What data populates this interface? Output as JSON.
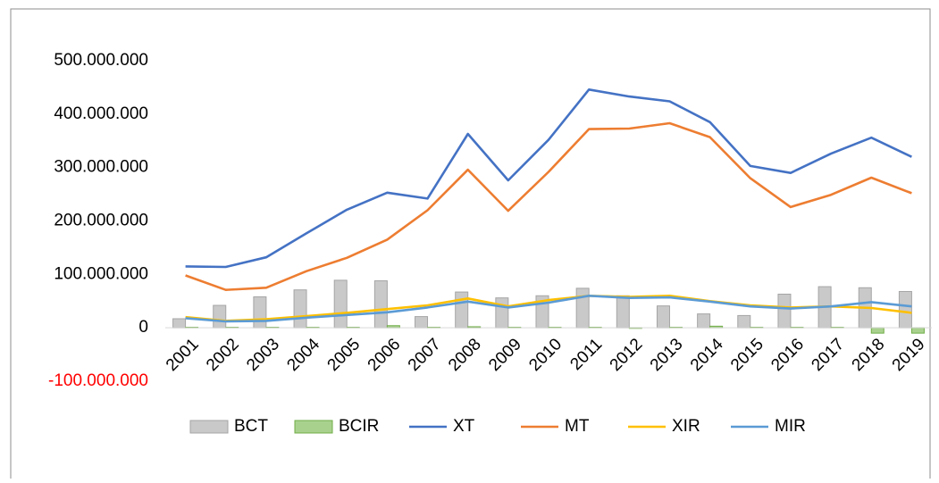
{
  "chart_data": {
    "type": "combo",
    "categories": [
      "2001",
      "2002",
      "2003",
      "2004",
      "2005",
      "2006",
      "2007",
      "2008",
      "2009",
      "2010",
      "2011",
      "2012",
      "2013",
      "2014",
      "2015",
      "2016",
      "2017",
      "2018",
      "2019"
    ],
    "series": [
      {
        "name": "BCT",
        "type": "bar",
        "color": "#c9c9c9",
        "stroke": "#a5a5a5",
        "values": [
          17000000,
          42000000,
          58000000,
          71000000,
          89000000,
          88000000,
          21000000,
          67000000,
          56000000,
          60000000,
          74000000,
          60000000,
          41000000,
          26000000,
          23000000,
          63000000,
          77000000,
          75000000,
          68000000
        ]
      },
      {
        "name": "BCIR",
        "type": "bar",
        "color": "#a9d18e",
        "stroke": "#70ad47",
        "values": [
          1000000,
          1000000,
          1000000,
          1000000,
          1000000,
          4000000,
          1000000,
          2000000,
          1000000,
          1000000,
          1000000,
          -1000000,
          1000000,
          3000000,
          1000000,
          1000000,
          1000000,
          -10000000,
          -10000000
        ]
      },
      {
        "name": "XT",
        "type": "line",
        "color": "#4472c4",
        "values": [
          115000000,
          114000000,
          132000000,
          177000000,
          221000000,
          253000000,
          242000000,
          363000000,
          276000000,
          352000000,
          446000000,
          433000000,
          424000000,
          385000000,
          303000000,
          290000000,
          326000000,
          356000000,
          320000000
        ]
      },
      {
        "name": "MT",
        "type": "line",
        "color": "#ed7d31",
        "values": [
          98000000,
          71000000,
          75000000,
          106000000,
          131000000,
          165000000,
          220000000,
          296000000,
          219000000,
          292000000,
          372000000,
          373000000,
          383000000,
          357000000,
          280000000,
          226000000,
          249000000,
          281000000,
          252000000
        ]
      },
      {
        "name": "XIR",
        "type": "line",
        "color": "#ffc000",
        "values": [
          20000000,
          13000000,
          16000000,
          22000000,
          28000000,
          35000000,
          42000000,
          55000000,
          40000000,
          52000000,
          60000000,
          58000000,
          60000000,
          50000000,
          42000000,
          38000000,
          40000000,
          37000000,
          28000000
        ]
      },
      {
        "name": "MIR",
        "type": "line",
        "color": "#5b9bd5",
        "values": [
          18000000,
          12000000,
          13000000,
          19000000,
          24000000,
          29000000,
          38000000,
          49000000,
          38000000,
          47000000,
          60000000,
          56000000,
          57000000,
          49000000,
          40000000,
          36000000,
          40000000,
          48000000,
          40000000
        ]
      }
    ],
    "ylim": [
      -100000000,
      500000000
    ],
    "yticks": [
      {
        "value": -100000000,
        "label": "-100.000.000"
      },
      0,
      {
        "value": 100000000,
        "label": "100.000.000"
      },
      {
        "value": 200000000,
        "label": "200.000.000"
      },
      {
        "value": 300000000,
        "label": "300.000.000"
      },
      {
        "value": 400000000,
        "label": "400.000.000"
      },
      {
        "value": 500000000,
        "label": "500.000.000"
      }
    ],
    "negative_tick_color": "#ff0000",
    "grid": false,
    "legend": "bottom"
  }
}
